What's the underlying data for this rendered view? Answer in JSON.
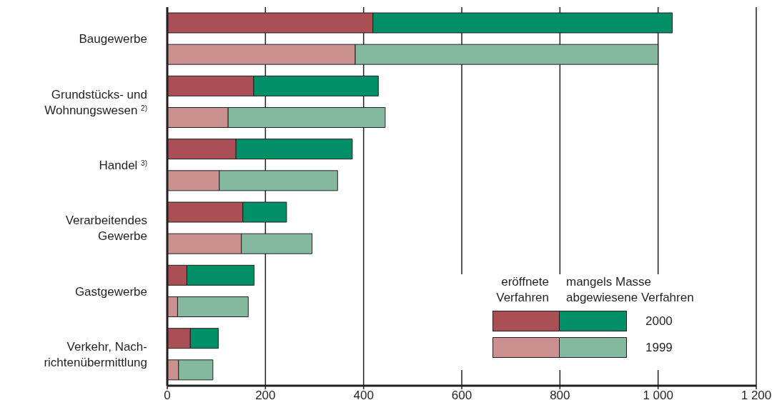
{
  "chart_data": {
    "type": "bar",
    "orientation": "horizontal",
    "stacked": true,
    "categories": [
      "Baugewerbe",
      null,
      "Grundstücks- und\nWohnungswesen $^{2)}$",
      null,
      "Handel $^{3)}$",
      null,
      "Verarbeitendes\nGewerbe",
      null,
      "Gastgewerbe",
      null,
      "Verkehr, Nach-\nrichtenübermittlung",
      null
    ],
    "series": [
      {
        "name": "eröffnete Verfahren",
        "colors": [
          "#a94f55",
          "#ca918e",
          "#a94f55",
          "#ca918e",
          "#a94f55",
          "#ca918e",
          "#a94f55",
          "#ca918e",
          "#a94f55",
          "#ca918e",
          "#a94f55",
          "#ca918e"
        ],
        "values": [
          419,
          383,
          176,
          124,
          140,
          106,
          154,
          151,
          40,
          21,
          47,
          23
        ]
      },
      {
        "name": "mangels Masse abgewiesene Verfahren",
        "colors": [
          "#008f67",
          "#84b9a0",
          "#008f67",
          "#84b9a0",
          "#008f67",
          "#84b9a0",
          "#008f67",
          "#84b9a0",
          "#008f67",
          "#84b9a0",
          "#008f67",
          "#84b9a0"
        ],
        "values": [
          610,
          617,
          254,
          320,
          237,
          241,
          89,
          144,
          137,
          144,
          57,
          70
        ]
      }
    ],
    "annotations": [
      "2000",
      "1999"
    ],
    "xlim": [
      0,
      1200
    ],
    "xticks": [
      0,
      200,
      400,
      600,
      800,
      {
        "value": 1000,
        "label": "1 000"
      },
      {
        "value": 1200,
        "label": "1 200"
      }
    ],
    "grid": "x",
    "legend": "bottom right"
  }
}
